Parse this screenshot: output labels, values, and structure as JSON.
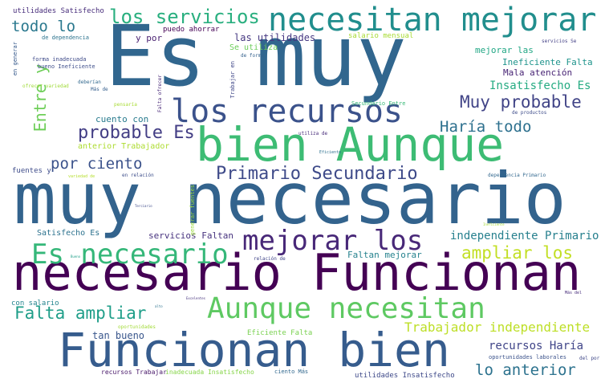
{
  "words": [
    {
      "id": "w01",
      "text": "Es muy",
      "color": "#31668e"
    },
    {
      "id": "w02",
      "text": "muy necesario",
      "color": "#33638d"
    },
    {
      "id": "w03",
      "text": "necesario Funcionan",
      "color": "#440154"
    },
    {
      "id": "w04",
      "text": "Funcionan bien",
      "color": "#365c8d"
    },
    {
      "id": "w05",
      "text": "bien Aunque",
      "color": "#3dbc74"
    },
    {
      "id": "w06",
      "text": "necesitan mejorar",
      "color": "#218e8d"
    },
    {
      "id": "w07",
      "text": "los recursos",
      "color": "#3b528b"
    },
    {
      "id": "w08",
      "text": "Aunque necesitan",
      "color": "#5ec962"
    },
    {
      "id": "w09",
      "text": "mejorar los",
      "color": "#482878"
    },
    {
      "id": "w10",
      "text": "Es necesario",
      "color": "#35b779"
    },
    {
      "id": "w11",
      "text": "los servicios",
      "color": "#29af7f"
    },
    {
      "id": "w12",
      "text": "Primario Secundario",
      "color": "#3e4a89"
    },
    {
      "id": "w13",
      "text": "probable Es",
      "color": "#433e85"
    },
    {
      "id": "w14",
      "text": "Muy probable",
      "color": "#414487"
    },
    {
      "id": "w15",
      "text": "Falta ampliar",
      "color": "#1f9e89"
    },
    {
      "id": "w16",
      "text": "ampliar los",
      "color": "#c2df23"
    },
    {
      "id": "w17",
      "text": "Haría todo",
      "color": "#2d708e"
    },
    {
      "id": "w18",
      "text": "por ciento",
      "color": "#3b528b"
    },
    {
      "id": "w19",
      "text": "todo lo",
      "color": "#2a788e"
    },
    {
      "id": "w20",
      "text": "Entre y",
      "color": "#6ece58"
    },
    {
      "id": "w21",
      "text": "lo anterior",
      "color": "#2c728e"
    },
    {
      "id": "w22",
      "text": "Trabajador independiente",
      "color": "#bddf26"
    },
    {
      "id": "w23",
      "text": "independiente Primario",
      "color": "#27808e"
    },
    {
      "id": "w24",
      "text": "recursos Haría",
      "color": "#404588"
    },
    {
      "id": "w25",
      "text": "Insatisfecho Es",
      "color": "#25ab82"
    },
    {
      "id": "w26",
      "text": "Faltan mejorar",
      "color": "#26828e"
    },
    {
      "id": "w27",
      "text": "servicios Faltan",
      "color": "#46327e"
    },
    {
      "id": "w28",
      "text": "Ineficiente Falta",
      "color": "#1f948c"
    },
    {
      "id": "w29",
      "text": "Mala atención",
      "color": "#482475"
    },
    {
      "id": "w30",
      "text": "tan bueno",
      "color": "#39568c"
    },
    {
      "id": "w31",
      "text": "las utilidades",
      "color": "#453781"
    },
    {
      "id": "w32",
      "text": "cuento con",
      "color": "#297b8e"
    },
    {
      "id": "w33",
      "text": "mejorar las",
      "color": "#22a785"
    },
    {
      "id": "w34",
      "text": "anterior Trabajador",
      "color": "#addc30"
    },
    {
      "id": "w35",
      "text": "Satisfecho Es",
      "color": "#2c728e"
    },
    {
      "id": "w36",
      "text": "salario mensual",
      "color": "#a8db34"
    },
    {
      "id": "w37",
      "text": "puedo ahorrar",
      "color": "#440154"
    },
    {
      "id": "w38",
      "text": "y por",
      "color": "#481f70"
    },
    {
      "id": "w39",
      "text": "utilidades Satisfecho",
      "color": "#472d7b"
    },
    {
      "id": "w40",
      "text": "Se utiliza",
      "color": "#6ccd5a"
    },
    {
      "id": "w41",
      "text": "fuentes y",
      "color": "#3e4c8a"
    },
    {
      "id": "w42",
      "text": "con salario",
      "color": "#25848e"
    },
    {
      "id": "w43",
      "text": "Eficiente Falta",
      "color": "#7ad151"
    },
    {
      "id": "w44",
      "text": "oportunidades laborales",
      "color": "#3b528b"
    },
    {
      "id": "w45",
      "text": "utilidades Insatisfecho",
      "color": "#3e4989"
    },
    {
      "id": "w46",
      "text": "recursos Trabajar",
      "color": "#48186a"
    },
    {
      "id": "w47",
      "text": "inadecuada Insatisfecho",
      "color": "#86d549"
    },
    {
      "id": "w48",
      "text": "ciento Más",
      "color": "#31688e"
    },
    {
      "id": "w49",
      "text": "de dependencia",
      "color": "#2c738e"
    },
    {
      "id": "w50",
      "text": "en generar",
      "color": "#375a8c"
    },
    {
      "id": "w51",
      "text": "forma inadecuada",
      "color": "#3e4a89"
    },
    {
      "id": "w52",
      "text": "bueno Ineficiente",
      "color": "#3d4d8a"
    },
    {
      "id": "w53",
      "text": "ofrecer variedad",
      "color": "#a0da39"
    },
    {
      "id": "w54",
      "text": "deberían",
      "color": "#31688e"
    },
    {
      "id": "w55",
      "text": "Más de",
      "color": "#355f8d"
    },
    {
      "id": "w56",
      "text": "pensaría",
      "color": "#a8db34"
    },
    {
      "id": "w57",
      "text": "Falta ofrecer",
      "color": "#482878"
    },
    {
      "id": "w58",
      "text": "Trabajar en",
      "color": "#3f4788"
    },
    {
      "id": "w59",
      "text": "de forma",
      "color": "#34618d"
    },
    {
      "id": "w60",
      "text": "Secundario Entre",
      "color": "#38b977"
    },
    {
      "id": "w61",
      "text": "de productos",
      "color": "#3e4c8a"
    },
    {
      "id": "w62",
      "text": "utiliza de",
      "color": "#472c7a"
    },
    {
      "id": "w63",
      "text": "Eficiente",
      "color": "#2d708e"
    },
    {
      "id": "w64",
      "text": "en relación",
      "color": "#3d4d8a"
    },
    {
      "id": "w65",
      "text": "dependencia Primario",
      "color": "#31678e"
    },
    {
      "id": "w66",
      "text": "generar fuentes",
      "color": "#9bd93c"
    },
    {
      "id": "w67",
      "text": "relación de",
      "color": "#404588"
    },
    {
      "id": "w68",
      "text": "oportunidades",
      "color": "#a2da37"
    },
    {
      "id": "w69",
      "text": "del por",
      "color": "#3f4788"
    },
    {
      "id": "w70",
      "text": "servicios Se",
      "color": "#423f85"
    },
    {
      "id": "w71",
      "text": "Terciario",
      "color": "#3e4a89"
    },
    {
      "id": "w72",
      "text": "Excelentes",
      "color": "#46337e"
    },
    {
      "id": "w73",
      "text": "Bueno",
      "color": "#1f9f88"
    },
    {
      "id": "w74",
      "text": "Ineficiente",
      "color": "#a5db36"
    },
    {
      "id": "w75",
      "text": "Más del",
      "color": "#472d7b"
    },
    {
      "id": "w76",
      "text": "variedad de",
      "color": "#b5de2b"
    },
    {
      "id": "w77",
      "text": "alto",
      "color": "#2c728e"
    }
  ]
}
